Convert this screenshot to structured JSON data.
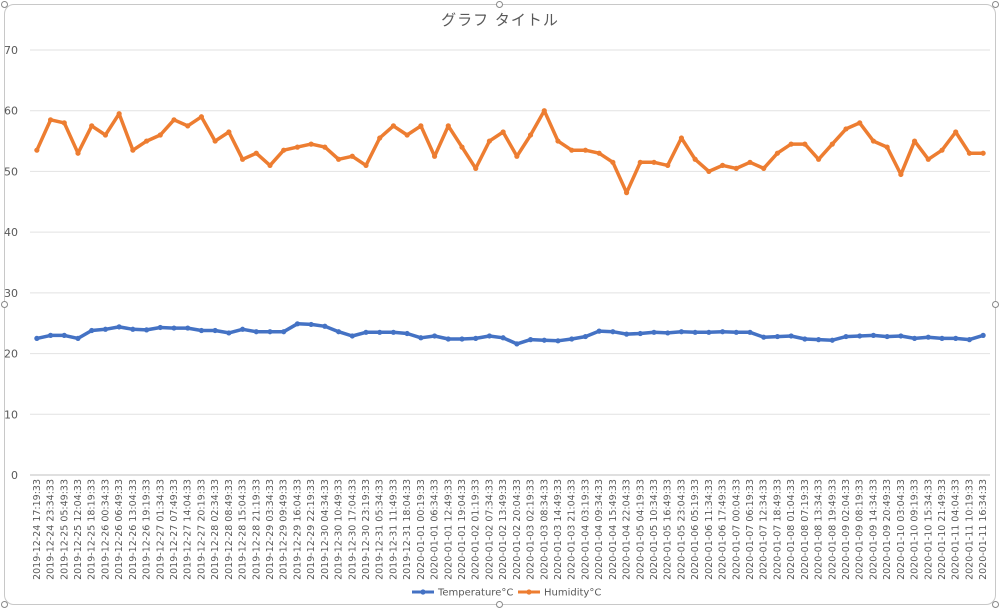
{
  "chart_data": {
    "type": "line",
    "title": "グラフ タイトル",
    "xlabel": "",
    "ylabel": "",
    "ylim": [
      0,
      70
    ],
    "yticks": [
      0,
      10,
      20,
      30,
      40,
      50,
      60,
      70
    ],
    "grid": true,
    "legend_position": "bottom",
    "categories": [
      "2019-12-24 17:19:33",
      "2019-12-24 23:34:33",
      "2019-12-25 05:49:33",
      "2019-12-25 12:04:33",
      "2019-12-25 18:19:33",
      "2019-12-26 00:34:33",
      "2019-12-26 06:49:33",
      "2019-12-26 13:04:33",
      "2019-12-26 19:19:33",
      "2019-12-27 01:34:33",
      "2019-12-27 07:49:33",
      "2019-12-27 14:04:33",
      "2019-12-27 20:19:33",
      "2019-12-28 02:34:33",
      "2019-12-28 08:49:33",
      "2019-12-28 15:04:33",
      "2019-12-28 21:19:33",
      "2019-12-29 03:34:33",
      "2019-12-29 09:49:33",
      "2019-12-29 16:04:33",
      "2019-12-29 22:19:33",
      "2019-12-30 04:34:33",
      "2019-12-30 10:49:33",
      "2019-12-30 17:04:33",
      "2019-12-30 23:19:33",
      "2019-12-31 05:34:33",
      "2019-12-31 11:49:33",
      "2019-12-31 18:04:33",
      "2020-01-01 00:19:33",
      "2020-01-01 06:34:33",
      "2020-01-01 12:49:33",
      "2020-01-01 19:04:33",
      "2020-01-02 01:19:33",
      "2020-01-02 07:34:33",
      "2020-01-02 13:49:33",
      "2020-01-02 20:04:33",
      "2020-01-03 02:19:33",
      "2020-01-03 08:34:33",
      "2020-01-03 14:49:33",
      "2020-01-03 21:04:33",
      "2020-01-04 03:19:33",
      "2020-01-04 09:34:33",
      "2020-01-04 15:49:33",
      "2020-01-04 22:04:33",
      "2020-01-05 04:19:33",
      "2020-01-05 10:34:33",
      "2020-01-05 16:49:33",
      "2020-01-05 23:04:33",
      "2020-01-06 05:19:33",
      "2020-01-06 11:34:33",
      "2020-01-06 17:49:33",
      "2020-01-07 00:04:33",
      "2020-01-07 06:19:33",
      "2020-01-07 12:34:33",
      "2020-01-07 18:49:33",
      "2020-01-08 01:04:33",
      "2020-01-08 07:19:33",
      "2020-01-08 13:34:33",
      "2020-01-08 19:49:33",
      "2020-01-09 02:04:33",
      "2020-01-09 08:19:33",
      "2020-01-09 14:34:33",
      "2020-01-09 20:49:33",
      "2020-01-10 03:04:33",
      "2020-01-10 09:19:33",
      "2020-01-10 15:34:33",
      "2020-01-10 21:49:33",
      "2020-01-11 04:04:33",
      "2020-01-11 10:19:33",
      "2020-01-11 16:34:33"
    ],
    "series": [
      {
        "name": "Temperature°C",
        "color": "#4472c4",
        "values": [
          22.5,
          23.0,
          23.0,
          22.5,
          23.8,
          24.0,
          24.4,
          24.0,
          23.9,
          24.3,
          24.2,
          24.2,
          23.8,
          23.8,
          23.4,
          24.0,
          23.6,
          23.6,
          23.6,
          24.9,
          24.8,
          24.5,
          23.6,
          22.9,
          23.5,
          23.5,
          23.5,
          23.3,
          22.6,
          22.9,
          22.4,
          22.4,
          22.5,
          22.9,
          22.6,
          21.6,
          22.3,
          22.2,
          22.1,
          22.4,
          22.8,
          23.7,
          23.6,
          23.2,
          23.3,
          23.5,
          23.4,
          23.6,
          23.5,
          23.5,
          23.6,
          23.5,
          23.5,
          22.7,
          22.8,
          22.9,
          22.4,
          22.3,
          22.2,
          22.8,
          22.9,
          23.0,
          22.8,
          22.9,
          22.5,
          22.7,
          22.5,
          22.5,
          22.3,
          23.0
        ]
      },
      {
        "name": "Humidity°C",
        "color": "#ed7d31",
        "values": [
          53.5,
          58.5,
          58.0,
          53.0,
          57.5,
          56.0,
          59.5,
          53.5,
          55.0,
          56.0,
          58.5,
          57.5,
          59.0,
          55.0,
          56.5,
          52.0,
          53.0,
          51.0,
          53.5,
          54.0,
          54.5,
          54.0,
          52.0,
          52.5,
          51.0,
          55.5,
          57.5,
          56.0,
          57.5,
          52.5,
          57.5,
          54.0,
          50.5,
          55.0,
          56.5,
          52.5,
          56.0,
          60.0,
          55.0,
          53.5,
          53.5,
          53.0,
          51.5,
          46.5,
          51.5,
          51.5,
          51.0,
          55.5,
          52.0,
          50.0,
          51.0,
          50.5,
          51.5,
          50.5,
          53.0,
          54.5,
          54.5,
          52.0,
          54.5,
          57.0,
          58.0,
          55.0,
          54.0,
          49.5,
          55.0,
          52.0,
          53.5,
          56.5,
          53.0,
          53.0
        ]
      }
    ]
  }
}
